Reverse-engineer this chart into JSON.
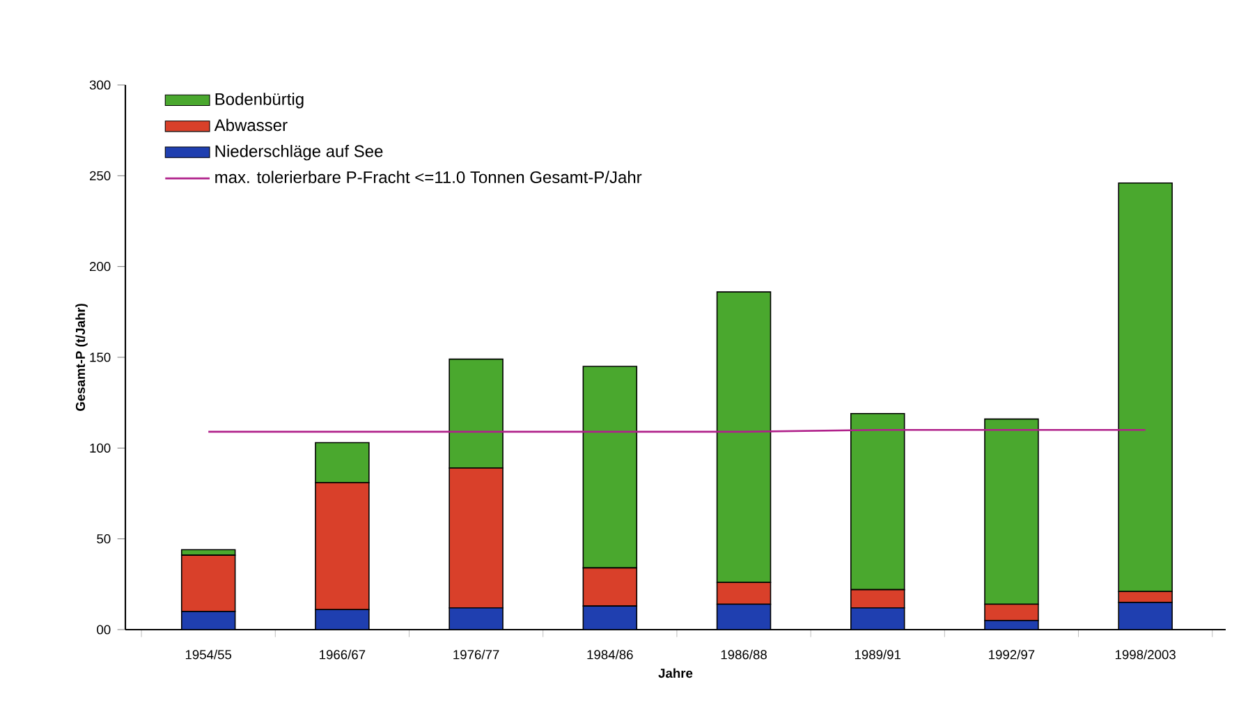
{
  "chart_data": {
    "type": "bar",
    "stacked": true,
    "xlabel": "Jahre",
    "ylabel": "Gesamt-P (t/Jahr)",
    "categories": [
      "1954/55",
      "1966/67",
      "1976/77",
      "1984/86",
      "1986/88",
      "1989/91",
      "1992/97",
      "1998/2003"
    ],
    "series": [
      {
        "name": "Niederschläge auf See",
        "color": "#1f3fb0",
        "values": [
          10,
          11,
          12,
          13,
          14,
          12,
          5,
          15
        ]
      },
      {
        "name": "Abwasser",
        "color": "#d9402a",
        "values": [
          31,
          70,
          77,
          21,
          12,
          10,
          9,
          6
        ]
      },
      {
        "name": "Bodenbürtig",
        "color": "#4aa82e",
        "values": [
          3,
          22,
          60,
          111,
          160,
          97,
          102,
          225
        ]
      },
      {
        "name": "max. tolerierbare P-Fracht <=11.0 Tonnen Gesamt-P/Jahr",
        "type": "line",
        "color": "#b0208a",
        "values": [
          109,
          109,
          109,
          109,
          109,
          110,
          110,
          110
        ]
      }
    ],
    "ylim": [
      0,
      300
    ],
    "yticks": [
      {
        "value": 0,
        "label": "00"
      },
      50,
      100,
      150,
      200,
      250,
      300
    ],
    "legend": "top left",
    "marker": "none",
    "line_style": "solid"
  }
}
